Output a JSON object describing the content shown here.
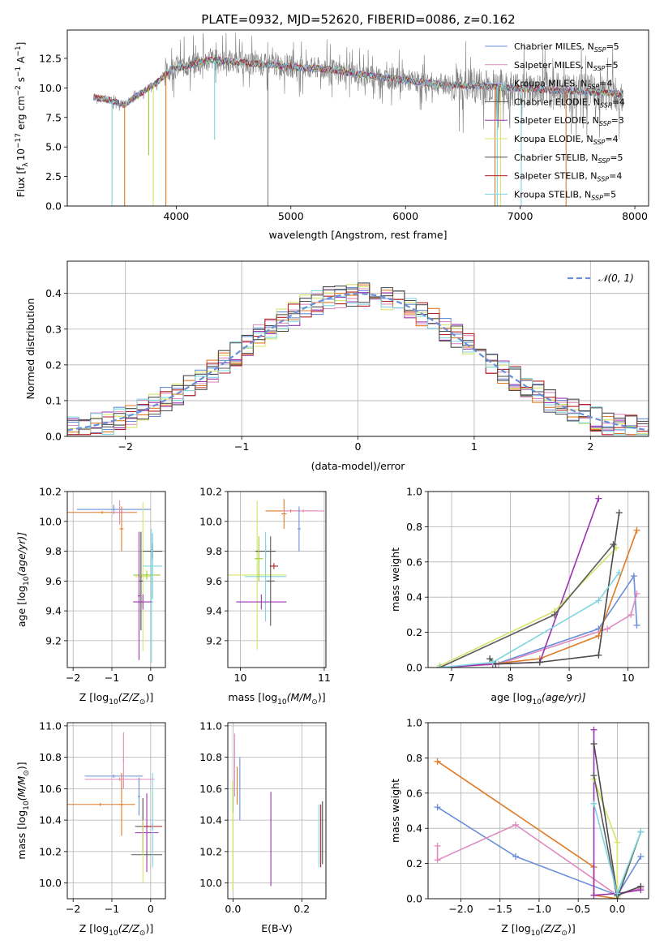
{
  "figure": {
    "title": "PLATE=0932, MJD=52620, FIBERID=0086, z=0.162"
  },
  "colors": {
    "Chabrier MILES": "#6a8fd8",
    "Salpeter MILES": "#e08bbf",
    "Kroupa MILES": "#97c7f0",
    "Chabrier ELODIE": "#5a5a5a",
    "Salpeter ELODIE": "#9b33b3",
    "Kroupa ELODIE": "#d8e36a",
    "Chabrier STELIB": "#4b4b4b",
    "Salpeter STELIB": "#b22222",
    "Kroupa STELIB": "#7fd6e0",
    "data": "#808080",
    "orange": "#e07a26",
    "lime": "#9acd32"
  },
  "chart_data": [
    {
      "id": "spectrum",
      "type": "line",
      "title": "PLATE=0932, MJD=52620, FIBERID=0086, z=0.162",
      "xlabel": "wavelength [Angstrom, rest frame]",
      "ylabel": "Flux [f$_\\lambda$ 10$^{-17}$ erg cm$^{-2}$ s$^{-1}$ A$^{-1}$]",
      "ylabel_parts": [
        "Flux [f",
        "λ",
        "10",
        "−17",
        " erg cm",
        "−2",
        " s",
        "−1",
        " A",
        "−1",
        "]"
      ],
      "xlim": [
        3050,
        8120
      ],
      "ylim": [
        0,
        14.9
      ],
      "xticks": [
        4000,
        5000,
        6000,
        7000,
        8000
      ],
      "yticks": [
        0.0,
        2.5,
        5.0,
        7.5,
        10.0,
        12.5
      ],
      "grid": false,
      "legend_placement": "top-right",
      "legend": [
        {
          "label": "Chabrier MILES",
          "sub": "SSP",
          "n": "=5",
          "color_key": "Chabrier MILES"
        },
        {
          "label": "Salpeter MILES",
          "sub": "SSP",
          "n": "=5",
          "color_key": "Salpeter MILES"
        },
        {
          "label": "Kroupa MILES",
          "sub": "SSP",
          "n": "=4",
          "color_key": "Kroupa MILES"
        },
        {
          "label": "Chabrier ELODIE",
          "sub": "SSP",
          "n": "=4",
          "color_key": "Chabrier ELODIE"
        },
        {
          "label": "Salpeter ELODIE",
          "sub": "SSP",
          "n": "=3",
          "color_key": "Salpeter ELODIE"
        },
        {
          "label": "Kroupa ELODIE",
          "sub": "SSP",
          "n": "=4",
          "color_key": "Kroupa ELODIE"
        },
        {
          "label": "Chabrier STELIB",
          "sub": "SSP",
          "n": "=5",
          "color_key": "Chabrier STELIB"
        },
        {
          "label": "Salpeter STELIB",
          "sub": "SSP",
          "n": "=4",
          "color_key": "Salpeter STELIB"
        },
        {
          "label": "Kroupa STELIB",
          "sub": "SSP",
          "n": "=5",
          "color_key": "Kroupa STELIB"
        }
      ],
      "continuum": [
        [
          3280,
          9.2
        ],
        [
          3400,
          9.0
        ],
        [
          3550,
          8.6
        ],
        [
          3700,
          9.6
        ],
        [
          3850,
          10.6
        ],
        [
          3950,
          11.6
        ],
        [
          4050,
          11.8
        ],
        [
          4150,
          12.0
        ],
        [
          4300,
          12.4
        ],
        [
          4500,
          12.2
        ],
        [
          4700,
          12.0
        ],
        [
          4900,
          11.9
        ],
        [
          5100,
          11.7
        ],
        [
          5300,
          11.6
        ],
        [
          5500,
          11.3
        ],
        [
          5700,
          11.0
        ],
        [
          5900,
          10.8
        ],
        [
          6100,
          10.5
        ],
        [
          6300,
          10.3
        ],
        [
          6500,
          10.2
        ],
        [
          6700,
          10.2
        ],
        [
          6900,
          10.0
        ],
        [
          7100,
          9.9
        ],
        [
          7300,
          9.8
        ],
        [
          7500,
          9.7
        ],
        [
          7700,
          9.6
        ],
        [
          7900,
          9.5
        ]
      ],
      "dips": [
        {
          "x": 3440,
          "y": 0.0,
          "color_key": "Kroupa STELIB"
        },
        {
          "x": 3550,
          "y": 0.0,
          "color_key": "orange"
        },
        {
          "x": 3760,
          "y": 4.3,
          "color_key": "lime"
        },
        {
          "x": 3800,
          "y": 0.0,
          "color_key": "Kroupa ELODIE"
        },
        {
          "x": 3910,
          "y": 0.0,
          "color_key": "orange"
        },
        {
          "x": 4335,
          "y": 5.6,
          "color_key": "Kroupa STELIB"
        },
        {
          "x": 4800,
          "y": 0.0,
          "color_key": "data"
        },
        {
          "x": 6780,
          "y": 0.0,
          "color_key": "orange"
        },
        {
          "x": 6800,
          "y": 0.0,
          "color_key": "Kroupa STELIB"
        },
        {
          "x": 6830,
          "y": 0.0,
          "color_key": "Kroupa ELODIE"
        },
        {
          "x": 7010,
          "y": 0.0,
          "color_key": "Kroupa STELIB"
        },
        {
          "x": 7400,
          "y": 0.0,
          "color_key": "orange"
        }
      ]
    },
    {
      "id": "residuals",
      "type": "step",
      "xlabel": "(data-model)/error",
      "ylabel": "Normed distribution",
      "xlim": [
        -2.5,
        2.5
      ],
      "ylim": [
        0,
        0.49
      ],
      "xticks": [
        -2,
        -1,
        0,
        1,
        2
      ],
      "yticks": [
        0.0,
        0.1,
        0.2,
        0.3,
        0.4
      ],
      "grid": true,
      "bin_width": 0.1,
      "legend_placement": "top-right",
      "legend": [
        {
          "label_main": "𝒩(0, 1)",
          "color_key": "Chabrier MILES"
        }
      ],
      "gaussian": {
        "mu": 0,
        "sigma": 1
      }
    },
    {
      "id": "age_vs_Z",
      "type": "errorbar",
      "xlabel": "Z [log",
      "xlabel_sub": "10",
      "xlabel_rest": "(Z/Z",
      "xlabel_end": ")]",
      "ylabel": "age  [log",
      "ylabel_sub": "10",
      "ylabel_rest": "(age/yr)]",
      "xlim": [
        -2.15,
        0.38
      ],
      "ylim": [
        9.02,
        10.2
      ],
      "xticks": [
        -2,
        -1,
        0
      ],
      "yticks": [
        9.2,
        9.4,
        9.6,
        9.8,
        10.0,
        10.2
      ],
      "grid": true,
      "points": [
        {
          "x": -0.95,
          "y": 10.08,
          "xerr": 0.95,
          "yerr": 0.03,
          "color_key": "Chabrier MILES"
        },
        {
          "x": -1.25,
          "y": 10.06,
          "xerr": 0.9,
          "yerr": 0.01,
          "color_key": "orange"
        },
        {
          "x": -0.8,
          "y": 10.06,
          "xerr": 0.2,
          "yerr": 0.08,
          "color_key": "Salpeter MILES"
        },
        {
          "x": -0.75,
          "y": 9.95,
          "xerr": 0.05,
          "yerr": 0.15,
          "color_key": "orange"
        },
        {
          "x": -0.2,
          "y": 9.63,
          "xerr": 0.2,
          "yerr": 0.5,
          "color_key": "Kroupa ELODIE"
        },
        {
          "x": -0.25,
          "y": 9.6,
          "xerr": 0.05,
          "yerr": 0.33,
          "color_key": "Chabrier STELIB"
        },
        {
          "x": -0.1,
          "y": 9.64,
          "xerr": 0.35,
          "yerr": 0.03,
          "color_key": "lime"
        },
        {
          "x": 0.05,
          "y": 9.8,
          "xerr": 0.25,
          "yerr": 0.05,
          "color_key": "Chabrier STELIB"
        },
        {
          "x": 0.05,
          "y": 9.7,
          "xerr": 0.25,
          "yerr": 0.22,
          "color_key": "Kroupa STELIB"
        },
        {
          "x": -0.2,
          "y": 9.46,
          "xerr": 0.25,
          "yerr": 0.05,
          "color_key": "Salpeter ELODIE"
        },
        {
          "x": -0.3,
          "y": 9.5,
          "xerr": 0.03,
          "yerr": 0.43,
          "color_key": "Salpeter ELODIE"
        },
        {
          "x": 0.02,
          "y": 9.5,
          "xerr": 0.02,
          "yerr": 0.45,
          "color_key": "Kroupa STELIB"
        }
      ]
    },
    {
      "id": "age_vs_mass",
      "type": "errorbar",
      "xlabel": "mass [log",
      "xlabel_sub": "10",
      "xlabel_rest": "(M/M",
      "xlabel_end": ")]",
      "xlim": [
        9.85,
        11.02
      ],
      "ylim": [
        9.02,
        10.2
      ],
      "xticks": [
        10,
        11
      ],
      "yticks": [
        9.2,
        9.4,
        9.6,
        9.8,
        10.0,
        10.2
      ],
      "grid": true,
      "points": [
        {
          "x": 10.6,
          "y": 10.07,
          "xerr": 0.3,
          "yerr": 0.01,
          "color_key": "orange"
        },
        {
          "x": 10.52,
          "y": 10.05,
          "xerr": 0.03,
          "yerr": 0.1,
          "color_key": "orange"
        },
        {
          "x": 10.75,
          "y": 10.07,
          "xerr": 0.25,
          "yerr": 0.01,
          "color_key": "Salpeter MILES"
        },
        {
          "x": 10.7,
          "y": 9.95,
          "xerr": 0.02,
          "yerr": 0.15,
          "color_key": "Chabrier MILES"
        },
        {
          "x": 10.2,
          "y": 9.64,
          "xerr": 0.35,
          "yerr": 0.5,
          "color_key": "Kroupa ELODIE"
        },
        {
          "x": 10.3,
          "y": 9.8,
          "xerr": 0.12,
          "yerr": 0.05,
          "color_key": "Chabrier STELIB"
        },
        {
          "x": 10.3,
          "y": 9.63,
          "xerr": 0.25,
          "yerr": 0.3,
          "color_key": "Kroupa STELIB"
        },
        {
          "x": 10.36,
          "y": 9.6,
          "xerr": 0.05,
          "yerr": 0.3,
          "color_key": "Chabrier ELODIE"
        },
        {
          "x": 10.25,
          "y": 9.46,
          "xerr": 0.3,
          "yerr": 0.05,
          "color_key": "Salpeter ELODIE"
        },
        {
          "x": 10.4,
          "y": 9.7,
          "xerr": 0.05,
          "yerr": 0.02,
          "color_key": "Salpeter STELIB"
        },
        {
          "x": 10.22,
          "y": 9.75,
          "xerr": 0.05,
          "yerr": 0.15,
          "color_key": "lime"
        }
      ]
    },
    {
      "id": "weight_vs_age",
      "type": "line",
      "xlabel": "age  [log",
      "xlabel_sub": "10",
      "xlabel_rest": "(age/yr)]",
      "ylabel": "mass weight",
      "xlim": [
        6.6,
        10.35
      ],
      "ylim": [
        0,
        1.0
      ],
      "xticks": [
        7,
        8,
        9,
        10
      ],
      "yticks": [
        0.0,
        0.2,
        0.4,
        0.6,
        0.8,
        1.0
      ],
      "grid": true,
      "series": [
        {
          "color_key": "Chabrier MILES",
          "x": [
            6.8,
            7.75,
            9.5,
            10.1,
            10.15
          ],
          "y": [
            0.0,
            0.02,
            0.22,
            0.52,
            0.24
          ]
        },
        {
          "color_key": "Salpeter MILES",
          "x": [
            6.8,
            7.8,
            9.65,
            10.05,
            10.15
          ],
          "y": [
            0.0,
            0.02,
            0.22,
            0.3,
            0.42
          ]
        },
        {
          "color_key": "orange",
          "x": [
            6.8,
            7.7,
            8.5,
            9.5,
            10.15
          ],
          "y": [
            0.0,
            0.02,
            0.05,
            0.18,
            0.78
          ]
        },
        {
          "color_key": "Salpeter ELODIE",
          "x": [
            6.8,
            7.7,
            8.5,
            9.5
          ],
          "y": [
            0.0,
            0.02,
            0.03,
            0.96
          ]
        },
        {
          "color_key": "Kroupa ELODIE",
          "x": [
            6.8,
            8.75,
            9.8
          ],
          "y": [
            0.01,
            0.32,
            0.68
          ]
        },
        {
          "color_key": "Chabrier ELODIE",
          "x": [
            6.8,
            8.75,
            9.75
          ],
          "y": [
            0.0,
            0.3,
            0.7
          ]
        },
        {
          "color_key": "Chabrier STELIB",
          "x": [
            7.65,
            7.75,
            8.5,
            9.5,
            9.85
          ],
          "y": [
            0.05,
            0.02,
            0.03,
            0.07,
            0.88
          ]
        },
        {
          "color_key": "Kroupa STELIB",
          "x": [
            6.8,
            7.7,
            9.5,
            9.85
          ],
          "y": [
            0.0,
            0.03,
            0.38,
            0.54
          ]
        }
      ]
    },
    {
      "id": "mass_vs_Z",
      "type": "errorbar",
      "xlabel": "Z [log",
      "xlabel_sub": "10",
      "xlabel_rest": "(Z/Z",
      "xlabel_end": ")]",
      "ylabel": "mass [log",
      "ylabel_sub": "10",
      "ylabel_rest": "(M/M",
      "ylabel_end": ")]",
      "xlim": [
        -2.15,
        0.38
      ],
      "ylim": [
        9.9,
        11.02
      ],
      "xticks": [
        -2,
        -1,
        0
      ],
      "yticks": [
        10.0,
        10.2,
        10.4,
        10.6,
        10.8,
        11.0
      ],
      "grid": true,
      "points": [
        {
          "x": -1.3,
          "y": 10.5,
          "xerr": 0.9,
          "yerr": 0.01,
          "color_key": "orange"
        },
        {
          "x": -0.95,
          "y": 10.68,
          "xerr": 0.75,
          "yerr": 0.01,
          "color_key": "Chabrier MILES"
        },
        {
          "x": -0.8,
          "y": 10.66,
          "xerr": 0.9,
          "yerr": 0.01,
          "color_key": "Salpeter MILES"
        },
        {
          "x": -0.75,
          "y": 10.5,
          "xerr": 0.05,
          "yerr": 0.2,
          "color_key": "orange"
        },
        {
          "x": -0.7,
          "y": 10.78,
          "xerr": 0.02,
          "yerr": 0.18,
          "color_key": "Salpeter MILES"
        },
        {
          "x": -0.3,
          "y": 10.55,
          "xerr": 0.03,
          "yerr": 0.12,
          "color_key": "Chabrier MILES"
        },
        {
          "x": -0.2,
          "y": 10.36,
          "xerr": 0.2,
          "yerr": 0.18,
          "color_key": "Chabrier STELIB"
        },
        {
          "x": -0.1,
          "y": 10.32,
          "xerr": 0.3,
          "yerr": 0.25,
          "color_key": "Salpeter ELODIE"
        },
        {
          "x": 0.05,
          "y": 10.36,
          "xerr": 0.25,
          "yerr": 0.02,
          "color_key": "Salpeter STELIB"
        },
        {
          "x": -0.1,
          "y": 10.18,
          "xerr": 0.4,
          "yerr": 0.02,
          "color_key": "Chabrier ELODIE"
        },
        {
          "x": -0.2,
          "y": 10.2,
          "xerr": 0.03,
          "yerr": 0.2,
          "color_key": "Kroupa ELODIE"
        },
        {
          "x": 0.05,
          "y": 10.4,
          "xerr": 0.03,
          "yerr": 0.3,
          "color_key": "Kroupa STELIB"
        }
      ]
    },
    {
      "id": "mass_vs_EBV",
      "type": "errorbar",
      "xlabel": "E(B-V)",
      "xlim": [
        -0.015,
        0.27
      ],
      "ylim": [
        9.9,
        11.02
      ],
      "xticks": [
        0.0,
        0.2
      ],
      "yticks": [
        10.0,
        10.2,
        10.4,
        10.6,
        10.8,
        11.0
      ],
      "grid": true,
      "points": [
        {
          "x": 0.0,
          "y": 10.3,
          "xerr": 0.0,
          "yerr": 0.35,
          "color_key": "lime"
        },
        {
          "x": 0.005,
          "y": 10.75,
          "xerr": 0.0,
          "yerr": 0.2,
          "color_key": "Salpeter MILES"
        },
        {
          "x": 0.012,
          "y": 10.62,
          "xerr": 0.0,
          "yerr": 0.12,
          "color_key": "orange"
        },
        {
          "x": 0.02,
          "y": 10.6,
          "xerr": 0.0,
          "yerr": 0.2,
          "color_key": "Chabrier MILES"
        },
        {
          "x": 0.0,
          "y": 10.2,
          "xerr": 0.0,
          "yerr": 0.25,
          "color_key": "Kroupa ELODIE"
        },
        {
          "x": 0.11,
          "y": 10.28,
          "xerr": 0.0,
          "yerr": 0.3,
          "color_key": "Salpeter ELODIE"
        },
        {
          "x": 0.25,
          "y": 10.3,
          "xerr": 0.0,
          "yerr": 0.2,
          "color_key": "Kroupa STELIB"
        },
        {
          "x": 0.255,
          "y": 10.3,
          "xerr": 0.0,
          "yerr": 0.2,
          "color_key": "Salpeter STELIB"
        },
        {
          "x": 0.26,
          "y": 10.32,
          "xerr": 0.0,
          "yerr": 0.2,
          "color_key": "Chabrier STELIB"
        }
      ]
    },
    {
      "id": "weight_vs_Z",
      "type": "line",
      "xlabel": "Z [log",
      "xlabel_sub": "10",
      "xlabel_rest": "(Z/Z",
      "xlabel_end": ")]",
      "ylabel": "mass weight",
      "xlim": [
        -2.42,
        0.4
      ],
      "ylim": [
        0,
        1.0
      ],
      "xticks": [
        -2.0,
        -1.5,
        -1.0,
        -0.5,
        0.0
      ],
      "yticks": [
        0.0,
        0.2,
        0.4,
        0.6,
        0.8,
        1.0
      ],
      "grid": true,
      "series": [
        {
          "color_key": "Chabrier MILES",
          "x": [
            -2.3,
            -1.3,
            0.0,
            0.3
          ],
          "y": [
            0.52,
            0.24,
            0.02,
            0.24
          ]
        },
        {
          "color_key": "Salpeter MILES",
          "x": [
            -2.3,
            -2.3,
            -1.3,
            0.0,
            0.3
          ],
          "y": [
            0.3,
            0.22,
            0.42,
            0.02,
            0.06
          ]
        },
        {
          "color_key": "orange",
          "x": [
            -2.3,
            -0.3,
            -0.3,
            0.0
          ],
          "y": [
            0.78,
            0.18,
            0.02,
            0.0
          ]
        },
        {
          "color_key": "Salpeter ELODIE",
          "x": [
            -0.3,
            -0.3,
            0.0,
            0.3
          ],
          "y": [
            0.96,
            0.02,
            0.03,
            0.05
          ]
        },
        {
          "color_key": "Kroupa ELODIE",
          "x": [
            -0.3,
            0.0,
            0.0
          ],
          "y": [
            0.68,
            0.32,
            0.01
          ]
        },
        {
          "color_key": "Chabrier ELODIE",
          "x": [
            -0.3,
            0.0,
            0.3
          ],
          "y": [
            0.7,
            0.0,
            0.38
          ]
        },
        {
          "color_key": "Chabrier STELIB",
          "x": [
            -0.3,
            0.0,
            0.3
          ],
          "y": [
            0.88,
            0.02,
            0.07
          ]
        },
        {
          "color_key": "Kroupa STELIB",
          "x": [
            -0.3,
            0.0,
            0.3
          ],
          "y": [
            0.54,
            0.03,
            0.38
          ]
        }
      ]
    }
  ]
}
